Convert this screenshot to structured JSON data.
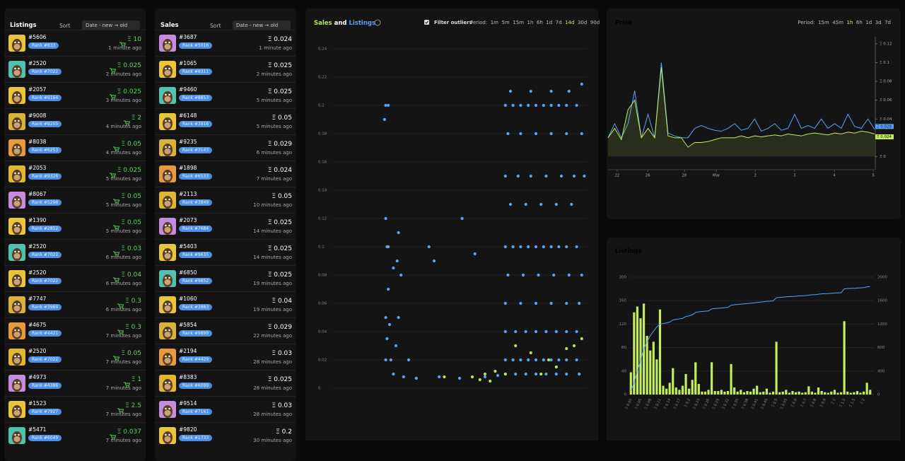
{
  "listings_panel": {
    "title": "Listings",
    "sort_label": "Sort",
    "sort_value": "Date - new → old",
    "items": [
      {
        "id": "#5606",
        "rank": "Rank #833",
        "price": "Ξ 10",
        "time": "1 minute ago"
      },
      {
        "id": "#2520",
        "rank": "Rank #7022",
        "price": "Ξ 0.025",
        "time": "2 minutes ago"
      },
      {
        "id": "#2057",
        "rank": "Rank #9164",
        "price": "Ξ 0.025",
        "time": "3 minutes ago"
      },
      {
        "id": "#9008",
        "rank": "Rank #8205",
        "price": "Ξ 2",
        "time": "4 minutes ago"
      },
      {
        "id": "#8038",
        "rank": "Rank #6253",
        "price": "Ξ 0.05",
        "time": "4 minutes ago"
      },
      {
        "id": "#2053",
        "rank": "Rank #9326",
        "price": "Ξ 0.025",
        "time": "5 minutes ago"
      },
      {
        "id": "#8067",
        "rank": "Rank #5298",
        "price": "Ξ 0.05",
        "time": "5 minutes ago"
      },
      {
        "id": "#1390",
        "rank": "Rank #2852",
        "price": "Ξ 0.05",
        "time": "5 minutes ago"
      },
      {
        "id": "#2520",
        "rank": "Rank #7022",
        "price": "Ξ 0.03",
        "time": "6 minutes ago"
      },
      {
        "id": "#2520",
        "rank": "Rank #7022",
        "price": "Ξ 0.04",
        "time": "6 minutes ago"
      },
      {
        "id": "#7747",
        "rank": "Rank #3969",
        "price": "Ξ 0.3",
        "time": "6 minutes ago"
      },
      {
        "id": "#4675",
        "rank": "Rank #4421",
        "price": "Ξ 0.3",
        "time": "7 minutes ago"
      },
      {
        "id": "#2520",
        "rank": "Rank #7022",
        "price": "Ξ 0.05",
        "time": "7 minutes ago"
      },
      {
        "id": "#4973",
        "rank": "Rank #4386",
        "price": "Ξ 1",
        "time": "7 minutes ago"
      },
      {
        "id": "#1523",
        "rank": "Rank #7927",
        "price": "Ξ 2.5",
        "time": "7 minutes ago"
      },
      {
        "id": "#5471",
        "rank": "Rank #6049",
        "price": "Ξ 0.037",
        "time": "7 minutes ago"
      }
    ]
  },
  "sales_panel": {
    "title": "Sales",
    "sort_label": "Sort",
    "sort_value": "Date - new → old",
    "items": [
      {
        "id": "#3687",
        "rank": "Rank #5016",
        "price": "Ξ 0.024",
        "time": "1 minute ago"
      },
      {
        "id": "#1065",
        "rank": "Rank #8311",
        "price": "Ξ 0.025",
        "time": "2 minutes ago"
      },
      {
        "id": "#9460",
        "rank": "Rank #8853",
        "price": "Ξ 0.025",
        "time": "5 minutes ago"
      },
      {
        "id": "#6148",
        "rank": "Rank #3916",
        "price": "Ξ 0.05",
        "time": "5 minutes ago"
      },
      {
        "id": "#9235",
        "rank": "Rank #3143",
        "price": "Ξ 0.029",
        "time": "6 minutes ago"
      },
      {
        "id": "#1898",
        "rank": "Rank #6533",
        "price": "Ξ 0.024",
        "time": "7 minutes ago"
      },
      {
        "id": "#2113",
        "rank": "Rank #3849",
        "price": "Ξ 0.05",
        "time": "10 minutes ago"
      },
      {
        "id": "#2073",
        "rank": "Rank #7684",
        "price": "Ξ 0.025",
        "time": "14 minutes ago"
      },
      {
        "id": "#5403",
        "rank": "Rank #9635",
        "price": "Ξ 0.025",
        "time": "14 minutes ago"
      },
      {
        "id": "#6850",
        "rank": "Rank #9852",
        "price": "Ξ 0.025",
        "time": "19 minutes ago"
      },
      {
        "id": "#1060",
        "rank": "Rank #3883",
        "price": "Ξ 0.04",
        "time": "19 minutes ago"
      },
      {
        "id": "#5854",
        "rank": "Rank #9899",
        "price": "Ξ 0.029",
        "time": "22 minutes ago"
      },
      {
        "id": "#2194",
        "rank": "Rank #4429",
        "price": "Ξ 0.03",
        "time": "28 minutes ago"
      },
      {
        "id": "#8383",
        "rank": "Rank #6099",
        "price": "Ξ 0.025",
        "time": "28 minutes ago"
      },
      {
        "id": "#9514",
        "rank": "Rank #7161",
        "price": "Ξ 0.03",
        "time": "28 minutes ago"
      },
      {
        "id": "#9820",
        "rank": "Rank #1733",
        "price": "Ξ 0.2",
        "time": "30 minutes ago"
      }
    ]
  },
  "chart_data": [
    {
      "type": "scatter",
      "title_connector": "and",
      "filter_label": "Filter outliers",
      "period_label": "Period:",
      "periods": [
        "1m",
        "5m",
        "15m",
        "1h",
        "6h",
        "1d",
        "7d",
        "14d",
        "30d",
        "90d"
      ],
      "active_period": "14d",
      "xlim": [
        0,
        100
      ],
      "ylim": [
        -0.037,
        0.24
      ],
      "yticks": [
        0,
        0.02,
        0.04,
        0.06,
        0.08,
        0.1,
        0.12,
        0.14,
        0.16,
        0.18,
        0.2,
        0.22,
        0.24
      ],
      "grid": true,
      "series": [
        {
          "name": "Sales",
          "color": "#b5e35a",
          "x": [
            44,
            55,
            60,
            64,
            68,
            72,
            78,
            85,
            92,
            95,
            98,
            88,
            62,
            58,
            82
          ],
          "values": [
            0.008,
            0.008,
            0.01,
            0.012,
            0.01,
            0.03,
            0.025,
            0.02,
            0.028,
            0.03,
            0.035,
            0.015,
            0.005,
            0.006,
            0.01
          ]
        },
        {
          "name": "Listings",
          "color": "#5aa2f5",
          "x": [
            21,
            22,
            20.5,
            26,
            21,
            21.5,
            22,
            25.5,
            24,
            27,
            22,
            26,
            21,
            22.5,
            21.5,
            25,
            21,
            23,
            30,
            38,
            51,
            56,
            40,
            24,
            28,
            33,
            42,
            50,
            60,
            65,
            70,
            78,
            86,
            93,
            98,
            68,
            71,
            74,
            77,
            80,
            83,
            86,
            89,
            92,
            96,
            69,
            74,
            80,
            86,
            92,
            98,
            68,
            73,
            78,
            84,
            90,
            95,
            99,
            70,
            76,
            82,
            88,
            94,
            68,
            71,
            74,
            77,
            80,
            83,
            86,
            89,
            92,
            96,
            69,
            75,
            81,
            87,
            93,
            98,
            68,
            74,
            80,
            86,
            92,
            97,
            68,
            72,
            76,
            80,
            84,
            88,
            92,
            96,
            68,
            71,
            74,
            77,
            80,
            83,
            86,
            89,
            92,
            96,
            68,
            72,
            76,
            80,
            84,
            88,
            92,
            97
          ],
          "values": [
            0.2,
            0.2,
            0.19,
            0.11,
            0.12,
            0.1,
            0.1,
            0.09,
            0.085,
            0.08,
            0.07,
            0.05,
            0.05,
            0.045,
            0.035,
            0.03,
            0.02,
            0.02,
            0.02,
            0.1,
            0.12,
            0.095,
            0.09,
            0.01,
            0.008,
            0.007,
            0.008,
            0.007,
            0.008,
            0.009,
            0.21,
            0.21,
            0.21,
            0.21,
            0.215,
            0.2,
            0.2,
            0.2,
            0.2,
            0.2,
            0.2,
            0.2,
            0.2,
            0.2,
            0.2,
            0.18,
            0.18,
            0.18,
            0.18,
            0.18,
            0.18,
            0.15,
            0.15,
            0.15,
            0.15,
            0.15,
            0.15,
            0.15,
            0.13,
            0.13,
            0.13,
            0.13,
            0.13,
            0.1,
            0.1,
            0.1,
            0.1,
            0.1,
            0.1,
            0.1,
            0.1,
            0.1,
            0.1,
            0.08,
            0.08,
            0.08,
            0.08,
            0.08,
            0.08,
            0.06,
            0.06,
            0.06,
            0.06,
            0.06,
            0.06,
            0.04,
            0.04,
            0.04,
            0.04,
            0.04,
            0.04,
            0.04,
            0.04,
            0.02,
            0.02,
            0.02,
            0.02,
            0.02,
            0.02,
            0.02,
            0.02,
            0.02,
            0.02,
            0.01,
            0.01,
            0.01,
            0.01,
            0.01,
            0.01,
            0.01,
            0.01
          ]
        }
      ]
    },
    {
      "type": "line",
      "title": "Price",
      "period_label": "Period:",
      "periods": [
        "15m",
        "45m",
        "1h",
        "6h",
        "1d",
        "3d",
        "7d"
      ],
      "active_period": "1h",
      "x": [
        0,
        2.5,
        5,
        7.5,
        10,
        12.5,
        15,
        17.5,
        20,
        22.5,
        25,
        27.5,
        30,
        32.5,
        35,
        37.5,
        40,
        42.5,
        45,
        47.5,
        50,
        52.5,
        55,
        57.5,
        60,
        62.5,
        65,
        67.5,
        70,
        72.5,
        75,
        77.5,
        80,
        82.5,
        85,
        87.5,
        90,
        92.5,
        95,
        97.5,
        100
      ],
      "xlim": [
        0,
        100
      ],
      "xticks": [
        {
          "value": 3.4,
          "label": "22"
        },
        {
          "value": 14.9,
          "label": "26"
        },
        {
          "value": 28.6,
          "label": "28"
        },
        {
          "value": 40.6,
          "label": "Mar"
        },
        {
          "value": 55.2,
          "label": "2"
        },
        {
          "value": 70,
          "label": "3"
        },
        {
          "value": 84.9,
          "label": "4"
        },
        {
          "value": 99.5,
          "label": "5"
        }
      ],
      "ylim": [
        -0.014,
        0.1275
      ],
      "yticks": [
        {
          "value": 0,
          "label": "Ξ 0"
        },
        {
          "value": 0.04,
          "label": "Ξ 0.04"
        },
        {
          "value": 0.06,
          "label": "Ξ 0.06"
        },
        {
          "value": 0.08,
          "label": "Ξ 0.08"
        },
        {
          "value": 0.1,
          "label": "Ξ 0.1"
        },
        {
          "value": 0.12,
          "label": "Ξ 0.12"
        }
      ],
      "series": [
        {
          "color": "#5aa2f5",
          "end_label": "Ξ 0.029",
          "values": [
            0.02,
            0.035,
            0.02,
            0.035,
            0.07,
            0.02,
            0.045,
            0.02,
            0.1,
            0.025,
            0.022,
            0.02,
            0.02,
            0.03,
            0.033,
            0.03,
            0.028,
            0.027,
            0.03,
            0.035,
            0.028,
            0.03,
            0.04,
            0.027,
            0.03,
            0.035,
            0.028,
            0.03,
            0.045,
            0.03,
            0.033,
            0.03,
            0.04,
            0.03,
            0.035,
            0.03,
            0.045,
            0.032,
            0.03,
            0.04,
            0.029
          ]
        },
        {
          "color": "#c3ec5e",
          "end_label": "Ξ 0.024",
          "values": [
            0.02,
            0.03,
            0.018,
            0.05,
            0.06,
            0.02,
            0.03,
            0.02,
            0.095,
            0.022,
            0.02,
            0.02,
            0.01,
            0.015,
            0.015,
            0.016,
            0.018,
            0.02,
            0.02,
            0.02,
            0.022,
            0.02,
            0.022,
            0.021,
            0.022,
            0.023,
            0.022,
            0.024,
            0.023,
            0.022,
            0.024,
            0.025,
            0.024,
            0.023,
            0.025,
            0.024,
            0.026,
            0.025,
            0.027,
            0.026,
            0.024
          ]
        }
      ]
    },
    {
      "type": "bar",
      "title": "Listings",
      "categories": [
        "Ξ 0.02",
        null,
        null,
        "Ξ 0.05",
        null,
        null,
        "Ξ 0.08",
        null,
        null,
        "Ξ 0.11",
        null,
        null,
        "Ξ 0.14",
        null,
        null,
        "Ξ 0.17",
        null,
        null,
        "Ξ 0.2",
        null,
        null,
        "Ξ 0.23",
        null,
        null,
        "Ξ 0.26",
        null,
        null,
        "Ξ 0.29",
        null,
        null,
        "Ξ 0.32",
        null,
        null,
        "Ξ 0.35",
        null,
        null,
        "Ξ 0.38",
        null,
        null,
        "Ξ 0.41",
        null,
        null,
        "Ξ 0.45",
        null,
        null,
        "Ξ 0.5",
        null,
        null,
        "Ξ 0.55",
        null,
        null,
        "Ξ 0.6",
        null,
        null,
        "Ξ 0.7",
        null,
        null,
        "Ξ 0.8",
        null,
        null,
        "Ξ 0.9",
        null,
        null,
        "Ξ 1",
        null,
        null,
        "Ξ 1.2",
        null,
        null,
        "Ξ 1.5",
        null,
        null,
        "Ξ 2",
        null,
        null
      ],
      "ylim": [
        0,
        200
      ],
      "yticks": [
        0,
        40,
        80,
        120,
        160,
        200
      ],
      "y2lim": [
        0,
        2000
      ],
      "y2ticks": [
        0,
        400,
        800,
        1200,
        1600,
        2000
      ],
      "grid": true,
      "series": [
        {
          "color": "#c3ec5e",
          "values": [
            38,
            140,
            150,
            130,
            155,
            100,
            75,
            90,
            60,
            145,
            15,
            10,
            20,
            45,
            12,
            8,
            15,
            35,
            10,
            25,
            55,
            18,
            5,
            5,
            8,
            55,
            6,
            6,
            8,
            5,
            6,
            52,
            12,
            5,
            8,
            4,
            6,
            5,
            10,
            15,
            4,
            5,
            10,
            3,
            5,
            90,
            4,
            5,
            8,
            3,
            6,
            4,
            5,
            3,
            4,
            14,
            5,
            3,
            12,
            6,
            4,
            3,
            5,
            8,
            3,
            4,
            125,
            5,
            3,
            4,
            6,
            3,
            5,
            20,
            8
          ]
        },
        {
          "color": "#5aa2f5",
          "axis": "y2",
          "values": [
            60,
            200,
            400,
            580,
            780,
            900,
            1000,
            1080,
            1150,
            1200,
            1210,
            1220,
            1235,
            1270,
            1280,
            1290,
            1300,
            1330,
            1340,
            1360,
            1400,
            1410,
            1415,
            1420,
            1425,
            1460,
            1465,
            1470,
            1475,
            1480,
            1485,
            1520,
            1530,
            1535,
            1540,
            1545,
            1550,
            1555,
            1560,
            1570,
            1575,
            1580,
            1590,
            1592,
            1596,
            1650,
            1655,
            1660,
            1665,
            1668,
            1672,
            1675,
            1680,
            1682,
            1685,
            1695,
            1700,
            1702,
            1710,
            1715,
            1718,
            1720,
            1724,
            1730,
            1732,
            1735,
            1800,
            1805,
            1808,
            1810,
            1815,
            1818,
            1822,
            1835,
            1840
          ]
        }
      ]
    }
  ]
}
